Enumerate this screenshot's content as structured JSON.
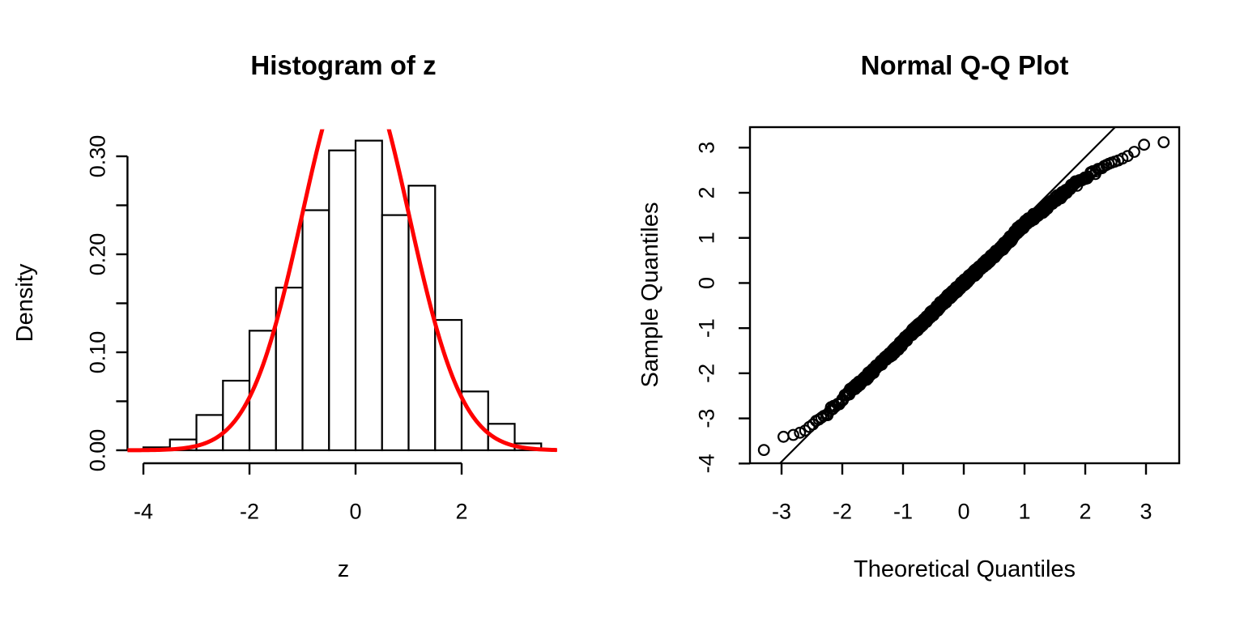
{
  "figure": {
    "background": "#ffffff",
    "foreground": "#000000"
  },
  "chart_data": [
    {
      "type": "bar",
      "subtype": "histogram",
      "title": "Histogram of z",
      "xlabel": "z",
      "ylabel": "Density",
      "bin_edges": [
        -4,
        -3.5,
        -3,
        -2.5,
        -2,
        -1.5,
        -1,
        -0.5,
        0,
        0.5,
        1,
        1.5,
        2,
        2.5,
        3,
        3.5
      ],
      "densities": [
        0.003,
        0.011,
        0.036,
        0.071,
        0.122,
        0.166,
        0.245,
        0.306,
        0.316,
        0.24,
        0.27,
        0.133,
        0.06,
        0.027,
        0.007
      ],
      "xlim": [
        -4.3,
        3.8
      ],
      "ylim": [
        -0.0126,
        0.3276
      ],
      "x_ticks": [
        -4,
        -2,
        0,
        2
      ],
      "x_tick_labels": [
        "-4",
        "-2",
        "0",
        "2"
      ],
      "y_ticks": [
        0,
        0.05,
        0.1,
        0.15,
        0.2,
        0.25,
        0.3
      ],
      "y_tick_labels": [
        "0.00",
        "",
        "0.10",
        "",
        "0.20",
        "",
        "0.30"
      ],
      "bar_fill": "#ffffff",
      "bar_stroke": "#000000",
      "grid": "off",
      "overlay_curve": {
        "kind": "normal-density",
        "mean": 0,
        "sd": 1,
        "color": "#FF0000",
        "clipped_at_top": true
      }
    },
    {
      "type": "scatter",
      "subtype": "qq-plot",
      "title": "Normal Q-Q Plot",
      "xlabel": "Theoretical Quantiles",
      "ylabel": "Sample Quantiles",
      "xlim": [
        -3.52,
        3.5467
      ],
      "ylim": [
        -3.9942,
        3.4538
      ],
      "x_ticks": [
        -3,
        -2,
        -1,
        0,
        1,
        2,
        3
      ],
      "x_tick_labels": [
        "-3",
        "-2",
        "-1",
        "0",
        "1",
        "2",
        "3"
      ],
      "y_ticks": [
        -4,
        -3,
        -2,
        -1,
        0,
        1,
        2,
        3
      ],
      "y_tick_labels": [
        "-4",
        "-3",
        "-2",
        "-1",
        "0",
        "1",
        "2",
        "3"
      ],
      "n_points": 1000,
      "marker": {
        "symbol": "open-circle",
        "color": "#000000"
      },
      "quantile_anchors": {
        "theoretical": [
          -3.28,
          -2.96,
          -2.86,
          -2.78,
          -2.7,
          -2.62,
          -2.56,
          -2.5,
          -2.44,
          -2.38,
          -2.32,
          -2.25,
          -2.1,
          -1.9,
          -1.7,
          -1.5,
          -1.3,
          -1.1,
          -0.9,
          -0.7,
          -0.5,
          -0.3,
          -0.1,
          0.1,
          0.3,
          0.5,
          0.7,
          0.9,
          1.1,
          1.3,
          1.5,
          1.7,
          1.9,
          2.1,
          2.25,
          2.4,
          2.55,
          2.65,
          2.75,
          2.82,
          2.88,
          2.94,
          3.0,
          3.08,
          3.3
        ],
        "sample": [
          -3.7,
          -3.4,
          -3.38,
          -3.36,
          -3.32,
          -3.28,
          -3.2,
          -3.16,
          -3.06,
          -3.02,
          -2.96,
          -2.89,
          -2.7,
          -2.45,
          -2.2,
          -1.95,
          -1.7,
          -1.45,
          -1.15,
          -0.9,
          -0.65,
          -0.38,
          -0.12,
          0.12,
          0.38,
          0.62,
          0.88,
          1.18,
          1.42,
          1.62,
          1.85,
          2.05,
          2.25,
          2.42,
          2.55,
          2.65,
          2.72,
          2.78,
          2.85,
          2.92,
          2.98,
          3.05,
          3.08,
          3.1,
          3.12
        ]
      },
      "jitter": {
        "sample": 0.06,
        "theoretical": 0.015,
        "dense_range": 2.28
      },
      "reference_line": {
        "slope": 1.35,
        "intercept": 0.09,
        "color": "#000000"
      },
      "box": "on",
      "grid": "off"
    }
  ]
}
